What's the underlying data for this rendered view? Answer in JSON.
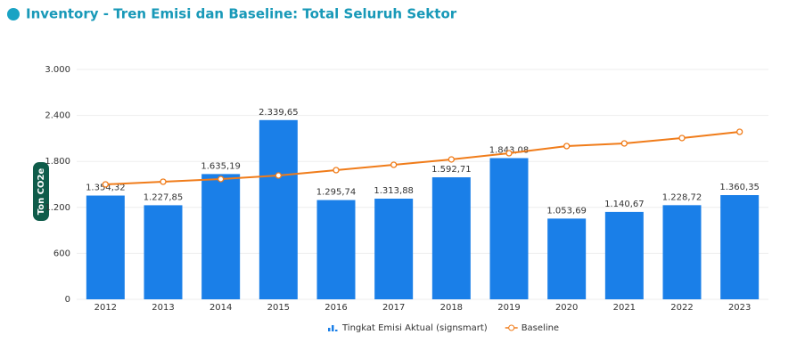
{
  "chart_data": {
    "type": "combo",
    "title": "Inventory - Tren Emisi dan Baseline: Total Seluruh Sektor",
    "y_label": "Ton CO2e",
    "categories": [
      "2012",
      "2013",
      "2014",
      "2015",
      "2016",
      "2017",
      "2018",
      "2019",
      "2020",
      "2021",
      "2022",
      "2023"
    ],
    "series": [
      {
        "name": "Tingkat Emisi Aktual (signsmart)",
        "type": "bar",
        "color": "#1a7fe8",
        "values": [
          1354.32,
          1227.85,
          1635.19,
          2339.65,
          1295.74,
          1313.88,
          1592.71,
          1843.08,
          1053.69,
          1140.67,
          1228.72,
          1360.35
        ],
        "value_labels": [
          "1.354,32",
          "1.227,85",
          "1.635,19",
          "2.339,65",
          "1.295,74",
          "1.313,88",
          "1.592,71",
          "1.843,08",
          "1.053,69",
          "1.140,67",
          "1.228,72",
          "1.360,35"
        ]
      },
      {
        "name": "Baseline",
        "type": "line",
        "color": "#f07c1a",
        "values": [
          1500,
          1535,
          1570,
          1616,
          1686,
          1756,
          1826,
          1907,
          2000,
          2035,
          2105,
          2186
        ]
      }
    ],
    "ylim": [
      0,
      3000
    ],
    "yticks": [
      0,
      600,
      {
        "value": 1200,
        "label": "1.200"
      },
      {
        "value": 1800,
        "label": "1.800"
      },
      {
        "value": 2400,
        "label": "2.400"
      },
      {
        "value": 3000,
        "label": "3.000"
      }
    ],
    "grid": true
  }
}
